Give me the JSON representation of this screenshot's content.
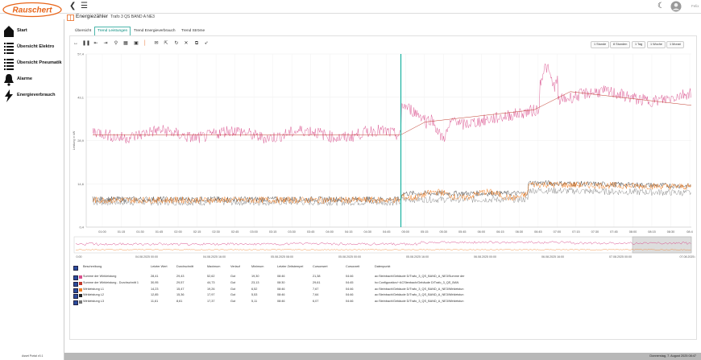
{
  "app": {
    "logo_text": "Rauschert",
    "version": "Asset Portal v0.1",
    "user": "Felix"
  },
  "nav": {
    "items": [
      {
        "label": "Start"
      },
      {
        "label": "Übersicht Elektro"
      },
      {
        "label": "Übersicht Pneumatik"
      },
      {
        "label": "Alarme"
      },
      {
        "label": "Energieverbrauch"
      }
    ]
  },
  "header": {
    "title": "Energiezähler",
    "subtitle": "Trafo 3 QS BAND A NE3"
  },
  "tabs": [
    {
      "label": "Übersicht"
    },
    {
      "label": "Trend Leistungen"
    },
    {
      "label": "Trend Energieverbrauch"
    },
    {
      "label": "Trend Ströme"
    }
  ],
  "ranges": [
    "1 Stunde",
    "8 Stunden",
    "1 Tag",
    "1 Woche",
    "1 Monat"
  ],
  "chart_data": {
    "type": "line",
    "ylabel": "Leistung in kW",
    "yticks": [
      "57,4",
      "43,1",
      "28,9",
      "14,6",
      "0,4"
    ],
    "xticks": [
      "01:00",
      "01:15",
      "01:30",
      "01:45",
      "02:00",
      "02:15",
      "02:30",
      "02:45",
      "03:00",
      "03:15",
      "03:30",
      "03:45",
      "04:00",
      "04:15",
      "04:30",
      "04:45",
      "05:00",
      "05:15",
      "05:30",
      "05:45",
      "06:00",
      "06:15",
      "06:30",
      "06:45",
      "07:00",
      "07:15",
      "07:30",
      "07:45",
      "08:00",
      "08:15",
      "08:30",
      "08:4"
    ],
    "series": [
      {
        "name": "Summe der Wirkleistung",
        "color": "#d94f8c"
      },
      {
        "name": "Wirkleistung L1",
        "color": "#f07d22"
      },
      {
        "name": "Wirkleistung L2",
        "color": "#222222"
      },
      {
        "name": "Wirkleistung L3",
        "color": "#777777"
      }
    ],
    "overview_ticks": [
      "0.00",
      "04.08.2025 00:00",
      "04.08.2025 16:00",
      "05.08.2025 08:00",
      "05.08.2025 00:00",
      "05.08.2025 16:00",
      "06.08.2025 00:00",
      "06.08.2025 16:00",
      "07.08.2025 00:00",
      "07.08.2025 8"
    ]
  },
  "table": {
    "headers": [
      "Beschreibung",
      "Letzter Wert",
      "Durchschnitt",
      "Maximum",
      "Verlauf",
      "Minimum",
      "Letzter Zeitstempel",
      "Cursorwert",
      "Cursorzeit",
      "Datenpunkt"
    ],
    "rows": [
      {
        "color": "#d94f8c",
        "cells": [
          "Summe der Wirkleistung",
          "28,41",
          "29,43",
          "52,62",
          "Gut",
          "19,30",
          "08:46",
          "21,38",
          "04:46",
          "ac:Steinbach/Gebäude D/Trafo_3_QS_BAND_A_NE3/Summe der"
        ]
      },
      {
        "color": "#c0392b",
        "cells": [
          "Summe der Wirkleistung - Durchschnitt 1",
          "30,95",
          "29,57",
          "44,73",
          "Gut",
          "23,13",
          "08:30",
          "29,61",
          "04:45",
          "hc:Configuration/~ACStenbach/Gebäude D/Trafo_3_QS_BAN"
        ]
      },
      {
        "color": "#f07d22",
        "cells": [
          "Wirkleistung L1",
          "14,23",
          "15,47",
          "19,26",
          "Gut",
          "6,52",
          "08:46",
          "7,67",
          "04:46",
          "ac:Steinbach/Gebäude D/Trafo_3_QS_BAND_A_NE3/Wirkleistun"
        ]
      },
      {
        "color": "#222222",
        "cells": [
          "Wirkleistung L2",
          "12,85",
          "15,36",
          "17,97",
          "Gut",
          "5,53",
          "08:46",
          "7,64",
          "04:46",
          "ac:Steinbach/Gebäude D/Trafo_3_QS_BAND_A_NE3/Wirkleistun"
        ]
      },
      {
        "color": "#777777",
        "cells": [
          "Wirkleistung L3",
          "11,61",
          "8,61",
          "17,37",
          "Gut",
          "5,11",
          "08:46",
          "6,07",
          "04:46",
          "ac:Steinbach/Gebäude D/Trafo_3_QS_BAND_A_NE3/Wirkleistun"
        ]
      }
    ]
  },
  "footer": {
    "datetime": "Donnerstag, 7. August 2025 08:47"
  }
}
